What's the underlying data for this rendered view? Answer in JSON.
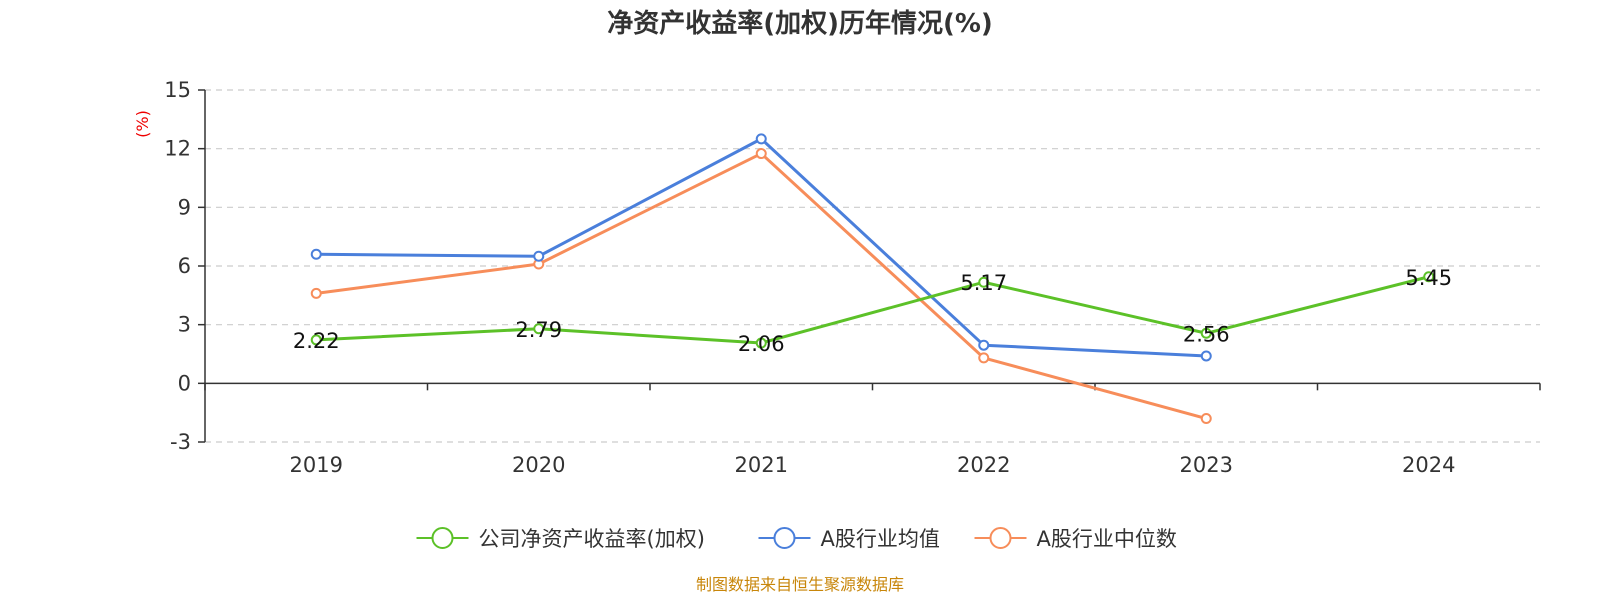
{
  "chart_data": {
    "type": "line",
    "title": "净资产收益率(加权)历年情况(%)",
    "ylabel": "(%)",
    "xlabel": "",
    "categories": [
      "2019",
      "2020",
      "2021",
      "2022",
      "2023",
      "2024"
    ],
    "ylim": [
      -3,
      15
    ],
    "yticks": [
      -3,
      0,
      3,
      6,
      9,
      12,
      15
    ],
    "grid": true,
    "legend_position": "bottom",
    "series": [
      {
        "name": "公司净资产收益率(加权)",
        "color": "#5cc128",
        "values": [
          2.22,
          2.79,
          2.06,
          5.17,
          2.56,
          5.45
        ],
        "labels": [
          "2.22",
          "2.79",
          "2.06",
          "5.17",
          "2.56",
          "5.45"
        ]
      },
      {
        "name": "A股行业均值",
        "color": "#4a7fdb",
        "values": [
          6.6,
          6.5,
          12.5,
          1.95,
          1.4,
          null
        ]
      },
      {
        "name": "A股行业中位数",
        "color": "#f78d5a",
        "values": [
          4.6,
          6.1,
          11.75,
          1.3,
          -1.8,
          null
        ]
      }
    ]
  },
  "footer": {
    "source": "制图数据来自恒生聚源数据库"
  }
}
